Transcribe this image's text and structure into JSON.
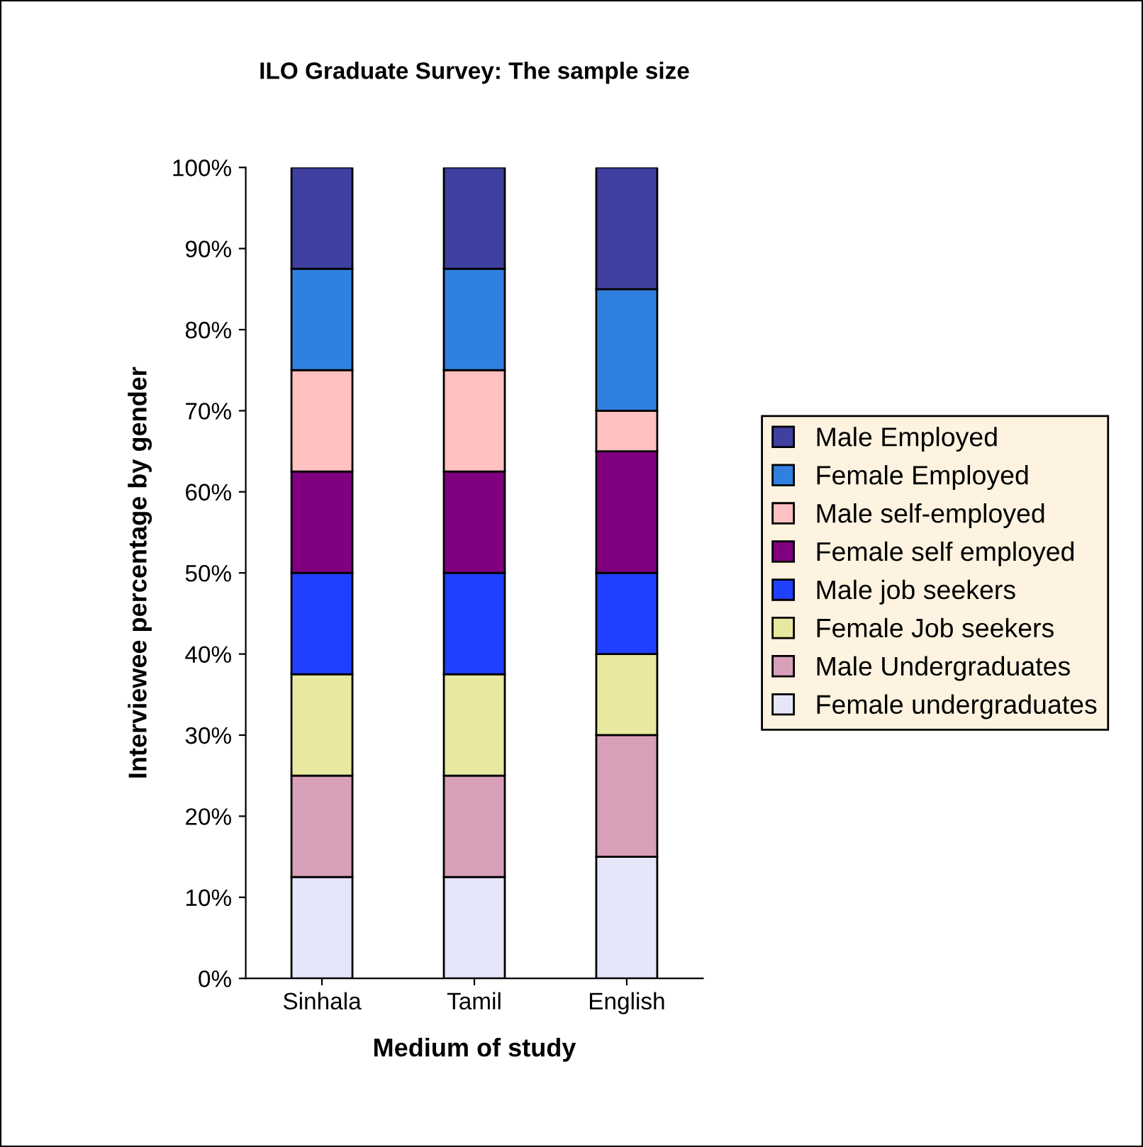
{
  "chart_data": {
    "type": "bar",
    "stacked": true,
    "title": "ILO Graduate Survey: The sample size",
    "xlabel": "Medium of study",
    "ylabel": "Interviewee percentage by gender",
    "categories": [
      "Sinhala",
      "Tamil",
      "English"
    ],
    "series": [
      {
        "name": "Female undergraduates",
        "color": "#e6e6fa",
        "values": [
          12.5,
          12.5,
          15
        ]
      },
      {
        "name": "Male Undergraduates",
        "color": "#d8a0b8",
        "values": [
          12.5,
          12.5,
          15
        ]
      },
      {
        "name": "Female Job seekers",
        "color": "#e8e8a0",
        "values": [
          12.5,
          12.5,
          10
        ]
      },
      {
        "name": "Male job seekers",
        "color": "#2040ff",
        "values": [
          12.5,
          12.5,
          10
        ]
      },
      {
        "name": "Female self employed",
        "color": "#800080",
        "values": [
          12.5,
          12.5,
          15
        ]
      },
      {
        "name": "Male self-employed",
        "color": "#ffc0c0",
        "values": [
          12.5,
          12.5,
          5
        ]
      },
      {
        "name": "Female Employed",
        "color": "#3080e0",
        "values": [
          12.5,
          12.5,
          15
        ]
      },
      {
        "name": "Male Employed",
        "color": "#4040a0",
        "values": [
          12.5,
          12.5,
          15
        ]
      }
    ],
    "ylim": [
      0,
      100
    ],
    "yticks": [
      {
        "value": 0,
        "label": "0%"
      },
      {
        "value": 10,
        "label": "10%"
      },
      {
        "value": 20,
        "label": "20%"
      },
      {
        "value": 30,
        "label": "30%"
      },
      {
        "value": 40,
        "label": "40%"
      },
      {
        "value": 50,
        "label": "50%"
      },
      {
        "value": 60,
        "label": "60%"
      },
      {
        "value": 70,
        "label": "70%"
      },
      {
        "value": 80,
        "label": "80%"
      },
      {
        "value": 90,
        "label": "90%"
      },
      {
        "value": 100,
        "label": "100%"
      }
    ],
    "grid": false,
    "legend": "right"
  }
}
